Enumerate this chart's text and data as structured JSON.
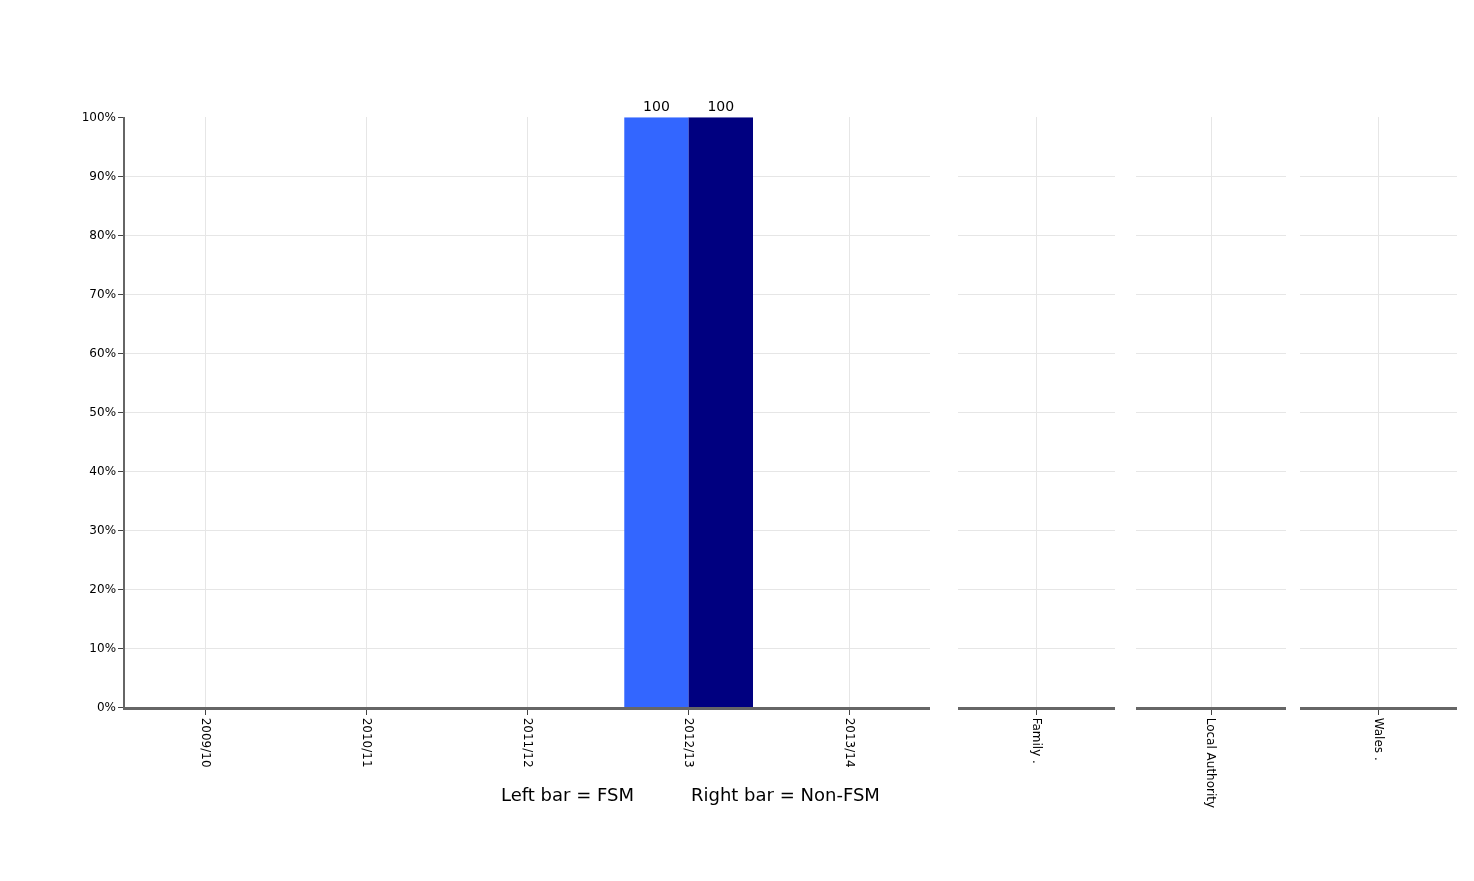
{
  "chart_data": [
    {
      "type": "bar",
      "categories": [
        "2009/10",
        "2010/11",
        "2011/12",
        "2012/13",
        "2013/14"
      ],
      "series": [
        {
          "color": "#3366ff",
          "values": [
            null,
            null,
            null,
            100,
            null
          ]
        },
        {
          "color": "#000080",
          "values": [
            null,
            null,
            null,
            100,
            null
          ]
        }
      ],
      "ylim": [
        0,
        100
      ],
      "yticks": [
        {
          "value": 0,
          "label": "0%"
        },
        {
          "value": 10,
          "label": "10%"
        },
        {
          "value": 20,
          "label": "20%"
        },
        {
          "value": 30,
          "label": "30%"
        },
        {
          "value": 40,
          "label": "40%"
        },
        {
          "value": 50,
          "label": "50%"
        },
        {
          "value": 60,
          "label": "60%"
        },
        {
          "value": 70,
          "label": "70%"
        },
        {
          "value": 80,
          "label": "80%"
        },
        {
          "value": 90,
          "label": "90%"
        },
        {
          "value": 100,
          "label": "100%"
        }
      ],
      "grid": true,
      "data_labels": true,
      "annotations": [
        "Left bar = FSM",
        "Right bar = Non-FSM"
      ]
    },
    {
      "type": "bar",
      "categories": [
        "Family ."
      ],
      "series": [
        {
          "color": "#3366ff",
          "values": [
            null
          ]
        },
        {
          "color": "#000080",
          "values": [
            null
          ]
        }
      ],
      "ylim": [
        0,
        100
      ],
      "yticks": [
        {
          "value": 0,
          "label": null
        },
        {
          "value": 10,
          "label": null
        },
        {
          "value": 20,
          "label": null
        },
        {
          "value": 30,
          "label": null
        },
        {
          "value": 40,
          "label": null
        },
        {
          "value": 50,
          "label": null
        },
        {
          "value": 60,
          "label": null
        },
        {
          "value": 70,
          "label": null
        },
        {
          "value": 80,
          "label": null
        },
        {
          "value": 90,
          "label": null
        },
        {
          "value": 100,
          "label": null
        }
      ],
      "tick_labels": "x",
      "grid": true
    },
    {
      "type": "bar",
      "categories": [
        "Local Authority"
      ],
      "series": [
        {
          "color": "#3366ff",
          "values": [
            null
          ]
        },
        {
          "color": "#000080",
          "values": [
            null
          ]
        }
      ],
      "ylim": [
        0,
        100
      ],
      "yticks": [
        {
          "value": 0,
          "label": null
        },
        {
          "value": 10,
          "label": null
        },
        {
          "value": 20,
          "label": null
        },
        {
          "value": 30,
          "label": null
        },
        {
          "value": 40,
          "label": null
        },
        {
          "value": 50,
          "label": null
        },
        {
          "value": 60,
          "label": null
        },
        {
          "value": 70,
          "label": null
        },
        {
          "value": 80,
          "label": null
        },
        {
          "value": 90,
          "label": null
        },
        {
          "value": 100,
          "label": null
        }
      ],
      "tick_labels": "x",
      "grid": true
    },
    {
      "type": "bar",
      "categories": [
        "Wales ."
      ],
      "series": [
        {
          "color": "#3366ff",
          "values": [
            null
          ]
        },
        {
          "color": "#000080",
          "values": [
            null
          ]
        }
      ],
      "ylim": [
        0,
        100
      ],
      "yticks": [
        {
          "value": 0,
          "label": null
        },
        {
          "value": 10,
          "label": null
        },
        {
          "value": 20,
          "label": null
        },
        {
          "value": 30,
          "label": null
        },
        {
          "value": 40,
          "label": null
        },
        {
          "value": 50,
          "label": null
        },
        {
          "value": 60,
          "label": null
        },
        {
          "value": 70,
          "label": null
        },
        {
          "value": 80,
          "label": null
        },
        {
          "value": 90,
          "label": null
        },
        {
          "value": 100,
          "label": null
        }
      ],
      "tick_labels": "x",
      "grid": true
    }
  ]
}
